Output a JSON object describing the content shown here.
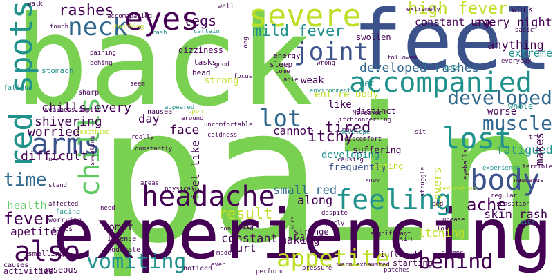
{
  "palette": {
    "green": "#7ad151",
    "lime": "#bddf26",
    "purple": "#440154",
    "indigo": "#3b528b",
    "blue": "#31688e",
    "teal": "#21918c",
    "mint": "#5ec962",
    "aqua": "#2fb47c"
  },
  "words": [
    {
      "text": "back",
      "color": "green"
    },
    {
      "text": "pain",
      "color": "green"
    },
    {
      "text": "feel",
      "color": "indigo"
    },
    {
      "text": "experiencing",
      "color": "purple"
    },
    {
      "text": "severe",
      "color": "lime"
    },
    {
      "text": "eyes",
      "color": "purple"
    },
    {
      "text": "red spots",
      "color": "teal"
    },
    {
      "text": "accompanied",
      "color": "teal"
    },
    {
      "text": "headache",
      "color": "purple"
    },
    {
      "text": "lost",
      "color": "teal"
    },
    {
      "text": "body",
      "color": "indigo"
    },
    {
      "text": "arms",
      "color": "indigo"
    },
    {
      "text": "joint",
      "color": "indigo"
    },
    {
      "text": "feeling",
      "color": "teal"
    },
    {
      "text": "chills",
      "color": "mint"
    },
    {
      "text": "also",
      "color": "purple"
    },
    {
      "text": "appetite",
      "color": "lime"
    },
    {
      "text": "neck",
      "color": "blue"
    },
    {
      "text": "vomiting",
      "color": "teal"
    },
    {
      "text": "behind",
      "color": "purple"
    },
    {
      "text": "developed",
      "color": "blue"
    },
    {
      "text": "muscle",
      "color": "blue"
    },
    {
      "text": "high fever",
      "color": "lime"
    },
    {
      "text": "mild fever",
      "color": "teal"
    },
    {
      "text": "rashes",
      "color": "purple"
    },
    {
      "text": "legs",
      "color": "purple"
    },
    {
      "text": "time",
      "color": "blue"
    },
    {
      "text": "lot",
      "color": "blue"
    },
    {
      "text": "ache",
      "color": "purple"
    },
    {
      "text": "result",
      "color": "lime"
    },
    {
      "text": "fever",
      "color": "purple"
    },
    {
      "text": "tired",
      "color": "purple"
    },
    {
      "text": "itchy",
      "color": "purple"
    },
    {
      "text": "developed rashes",
      "color": "blue"
    },
    {
      "text": "every night",
      "color": "purple"
    },
    {
      "text": "constant urge",
      "color": "purple"
    },
    {
      "text": "anything",
      "color": "purple"
    },
    {
      "text": "extreme",
      "color": "teal"
    },
    {
      "text": "work",
      "color": "purple"
    },
    {
      "text": "skin rash",
      "color": "purple"
    },
    {
      "text": "fatigued",
      "color": "teal"
    },
    {
      "text": "small red",
      "color": "blue"
    },
    {
      "text": "along",
      "color": "purple"
    },
    {
      "text": "shivering",
      "color": "purple"
    },
    {
      "text": "chills every",
      "color": "purple"
    },
    {
      "text": "difficult",
      "color": "purple"
    },
    {
      "text": "worried",
      "color": "purple"
    },
    {
      "text": "health",
      "color": "mint"
    },
    {
      "text": "apetite",
      "color": "purple"
    },
    {
      "text": "vomit",
      "color": "purple"
    },
    {
      "text": "constant",
      "color": "purple"
    },
    {
      "text": "hurt",
      "color": "purple"
    },
    {
      "text": "making",
      "color": "purple"
    },
    {
      "text": "itching",
      "color": "lime"
    },
    {
      "text": "covers",
      "color": "lime"
    },
    {
      "text": "makes",
      "color": "purple"
    },
    {
      "text": "worse",
      "color": "purple"
    },
    {
      "text": "whole",
      "color": "teal"
    },
    {
      "text": "feel like",
      "color": "purple"
    },
    {
      "text": "face",
      "color": "purple"
    },
    {
      "text": "day",
      "color": "purple"
    },
    {
      "text": "cannot",
      "color": "purple"
    },
    {
      "text": "like",
      "color": "purple"
    },
    {
      "text": "entire body",
      "color": "lime"
    },
    {
      "text": "weak",
      "color": "purple"
    },
    {
      "text": "strong",
      "color": "lime"
    },
    {
      "text": "developing",
      "color": "teal"
    },
    {
      "text": "frequently",
      "color": "indigo"
    },
    {
      "text": "swollen",
      "color": "purple"
    },
    {
      "text": "get",
      "color": "teal"
    },
    {
      "text": "nauseous",
      "color": "purple"
    },
    {
      "text": "noticed",
      "color": "purple"
    },
    {
      "text": "starting",
      "color": "purple"
    },
    {
      "text": "inflamed",
      "color": "purple"
    },
    {
      "text": "skin",
      "color": "purple"
    },
    {
      "text": "strange",
      "color": "purple"
    },
    {
      "text": "distinct",
      "color": "purple"
    },
    {
      "text": "suffering",
      "color": "purple"
    },
    {
      "text": "eating",
      "color": "lime"
    },
    {
      "text": "dizziness",
      "color": "purple"
    },
    {
      "text": "energy",
      "color": "purple"
    },
    {
      "text": "sleep",
      "color": "purple"
    },
    {
      "text": "tasks",
      "color": "purple"
    },
    {
      "text": "head",
      "color": "purple"
    },
    {
      "text": "stomach",
      "color": "teal"
    },
    {
      "text": "sharp",
      "color": "purple"
    },
    {
      "text": "fatigue",
      "color": "teal"
    },
    {
      "text": "worrying",
      "color": "purple"
    },
    {
      "text": "spots",
      "color": "purple"
    },
    {
      "text": "smelling",
      "color": "purple"
    },
    {
      "text": "causes",
      "color": "purple"
    },
    {
      "text": "activities",
      "color": "purple"
    },
    {
      "text": "facing",
      "color": "teal"
    },
    {
      "text": "intense",
      "color": "purple"
    },
    {
      "text": "moderate",
      "color": "purple"
    },
    {
      "text": "sweating",
      "color": "purple"
    },
    {
      "text": "weakness ampits",
      "color": "purple"
    },
    {
      "text": "affected",
      "color": "purple"
    },
    {
      "text": "stand",
      "color": "purple"
    },
    {
      "text": "use",
      "color": "purple"
    },
    {
      "text": "need",
      "color": "purple"
    },
    {
      "text": "something",
      "color": "lime"
    },
    {
      "text": "really",
      "color": "purple"
    },
    {
      "text": "constantly",
      "color": "purple"
    },
    {
      "text": "nausea",
      "color": "purple"
    },
    {
      "text": "appeared",
      "color": "teal"
    },
    {
      "text": "physical",
      "color": "purple"
    },
    {
      "text": "concerned",
      "color": "purple"
    },
    {
      "text": "daily",
      "color": "purple"
    },
    {
      "text": "made",
      "color": "purple"
    },
    {
      "text": "even",
      "color": "purple"
    },
    {
      "text": "perform",
      "color": "purple"
    },
    {
      "text": "sure",
      "color": "purple"
    },
    {
      "text": "redness",
      "color": "purple"
    },
    {
      "text": "pressure",
      "color": "purple"
    },
    {
      "text": "despite",
      "color": "purple"
    },
    {
      "text": "properly",
      "color": "purple"
    },
    {
      "text": "significant",
      "color": "purple"
    },
    {
      "text": "exhausted",
      "color": "purple"
    },
    {
      "text": "patches",
      "color": "purple"
    },
    {
      "text": "warm",
      "color": "purple"
    },
    {
      "text": "cramps",
      "color": "purple"
    },
    {
      "text": "loss",
      "color": "purple"
    },
    {
      "text": "bed",
      "color": "purple"
    },
    {
      "text": "unease",
      "color": "purple"
    },
    {
      "text": "sensation",
      "color": "purple"
    },
    {
      "text": "medication",
      "color": "lime"
    },
    {
      "text": "sick",
      "color": "teal"
    },
    {
      "text": "regular",
      "color": "purple"
    },
    {
      "text": "eyeballs",
      "color": "purple"
    },
    {
      "text": "experience",
      "color": "teal"
    },
    {
      "text": "struggle",
      "color": "purple"
    },
    {
      "text": "know",
      "color": "purple"
    },
    {
      "text": "causing",
      "color": "purple"
    },
    {
      "text": "itch",
      "color": "purple"
    },
    {
      "text": "move",
      "color": "purple"
    },
    {
      "text": "discomfort",
      "color": "purple"
    },
    {
      "text": "concerning",
      "color": "purple"
    },
    {
      "text": "Moreover",
      "color": "purple"
    },
    {
      "text": "develope",
      "color": "teal"
    },
    {
      "text": "sit",
      "color": "purple"
    },
    {
      "text": "try",
      "color": "purple"
    },
    {
      "text": "nauseous",
      "color": "purple"
    },
    {
      "text": "terrible",
      "color": "purple"
    },
    {
      "text": "dots",
      "color": "teal"
    },
    {
      "text": "everyday",
      "color": "purple"
    },
    {
      "text": "followed",
      "color": "purple"
    },
    {
      "text": "wrong",
      "color": "purple"
    },
    {
      "text": "able",
      "color": "purple"
    },
    {
      "text": "come",
      "color": "purple"
    },
    {
      "text": "environment",
      "color": "teal"
    },
    {
      "text": "areas",
      "color": "purple"
    },
    {
      "text": "seem",
      "color": "purple"
    },
    {
      "text": "paining",
      "color": "purple"
    },
    {
      "text": "behing",
      "color": "purple"
    },
    {
      "text": "upon",
      "color": "lime"
    },
    {
      "text": "around",
      "color": "purple"
    },
    {
      "text": "uncomfortable",
      "color": "purple"
    },
    {
      "text": "coldness",
      "color": "purple"
    },
    {
      "text": "good",
      "color": "purple"
    },
    {
      "text": "long",
      "color": "purple"
    },
    {
      "text": "focus",
      "color": "purple"
    },
    {
      "text": "certain",
      "color": "teal"
    },
    {
      "text": "rash",
      "color": "teal"
    },
    {
      "text": "touching",
      "color": "lime"
    },
    {
      "text": "touch",
      "color": "purple"
    },
    {
      "text": "walk",
      "color": "purple"
    },
    {
      "text": "accomapanied",
      "color": "purple"
    },
    {
      "text": "well",
      "color": "purple"
    },
    {
      "text": "extremely",
      "color": "purple"
    },
    {
      "text": "basic",
      "color": "purple"
    },
    {
      "text": "night",
      "color": "purple"
    },
    {
      "text": "shivers",
      "color": "teal"
    },
    {
      "text": "mild",
      "color": "purple"
    }
  ]
}
